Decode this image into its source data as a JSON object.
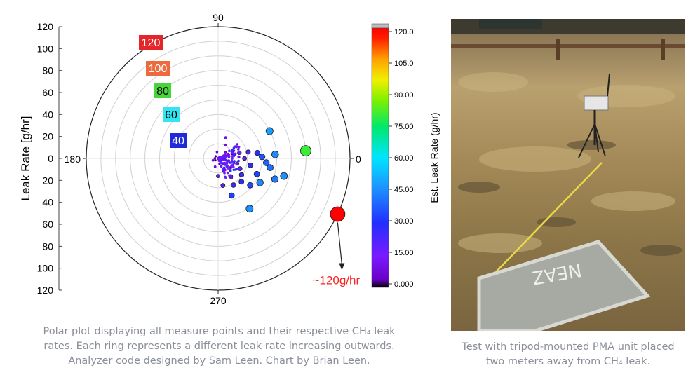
{
  "chart_data": {
    "type": "polar-scatter",
    "title": "",
    "ylabel": "Leak Rate [g/hr]",
    "r_axis_ticks_upper": [
      120,
      100,
      80,
      60,
      40,
      20,
      0
    ],
    "r_axis_ticks_lower": [
      20,
      40,
      60,
      80,
      100,
      120
    ],
    "angle_labels": [
      "90",
      "180",
      "0",
      "270"
    ],
    "rlim": [
      0,
      120
    ],
    "ring_labels": [
      {
        "text": "120",
        "color": "#e3262a"
      },
      {
        "text": "100",
        "color": "#ec6a3d"
      },
      {
        "text": "80",
        "color": "#47d63a"
      },
      {
        "text": "60",
        "color": "#33e5f0"
      },
      {
        "text": "40",
        "color": "#1f2bd6"
      }
    ],
    "colorbar": {
      "label": "Est. Leak Rate (g/hr)",
      "min": 0,
      "max": 120,
      "ticks": [
        "120.0",
        "105.0",
        "90.00",
        "75.00",
        "60.00",
        "45.00",
        "30.00",
        "15.00",
        "0.000"
      ]
    },
    "points": [
      {
        "theta": 335,
        "r": 120,
        "value": 120
      },
      {
        "theta": 5,
        "r": 80,
        "value": 80
      },
      {
        "theta": 28,
        "r": 53,
        "value": 48
      },
      {
        "theta": 302,
        "r": 54,
        "value": 46
      },
      {
        "theta": 330,
        "r": 44,
        "value": 44
      },
      {
        "theta": 345,
        "r": 62,
        "value": 46
      },
      {
        "theta": 340,
        "r": 55,
        "value": 42
      },
      {
        "theta": 4,
        "r": 52,
        "value": 45
      },
      {
        "theta": 350,
        "r": 48,
        "value": 40
      },
      {
        "theta": 355,
        "r": 44,
        "value": 38
      },
      {
        "theta": 2,
        "r": 40,
        "value": 36
      },
      {
        "theta": 320,
        "r": 38,
        "value": 34
      },
      {
        "theta": 338,
        "r": 38,
        "value": 33
      },
      {
        "theta": 8,
        "r": 36,
        "value": 30
      },
      {
        "theta": 315,
        "r": 30,
        "value": 28
      },
      {
        "theta": 300,
        "r": 28,
        "value": 25
      },
      {
        "theta": 290,
        "r": 36,
        "value": 32
      },
      {
        "theta": 325,
        "r": 26,
        "value": 24
      },
      {
        "theta": 12,
        "r": 28,
        "value": 22
      },
      {
        "theta": 348,
        "r": 30,
        "value": 26
      },
      {
        "theta": 335,
        "r": 22,
        "value": 20
      },
      {
        "theta": 305,
        "r": 20,
        "value": 18
      },
      {
        "theta": 280,
        "r": 25,
        "value": 20
      },
      {
        "theta": 15,
        "r": 20,
        "value": 16
      },
      {
        "theta": 0,
        "r": 24,
        "value": 19
      },
      {
        "theta": 345,
        "r": 18,
        "value": 14
      },
      {
        "theta": 20,
        "r": 14,
        "value": 12
      },
      {
        "theta": 320,
        "r": 14,
        "value": 12
      },
      {
        "theta": 300,
        "r": 12,
        "value": 10
      },
      {
        "theta": 270,
        "r": 16,
        "value": 13
      },
      {
        "theta": 10,
        "r": 10,
        "value": 8
      },
      {
        "theta": 330,
        "r": 9,
        "value": 7
      },
      {
        "theta": 250,
        "r": 8,
        "value": 6
      },
      {
        "theta": 40,
        "r": 9,
        "value": 6
      },
      {
        "theta": 60,
        "r": 14,
        "value": 8
      },
      {
        "theta": 200,
        "r": 5,
        "value": 4
      },
      {
        "theta": 180,
        "r": 3,
        "value": 3
      },
      {
        "theta": 100,
        "r": 6,
        "value": 4
      },
      {
        "theta": 355,
        "r": 6,
        "value": 5
      },
      {
        "theta": 310,
        "r": 6,
        "value": 5
      },
      {
        "theta": 285,
        "r": 5,
        "value": 3
      },
      {
        "theta": 25,
        "r": 5,
        "value": 3
      },
      {
        "theta": 215,
        "r": 3,
        "value": 2
      },
      {
        "theta": 140,
        "r": 3,
        "value": 2
      },
      {
        "theta": 70,
        "r": 20,
        "value": 10
      }
    ],
    "annotation": "~120g/hr"
  },
  "captions": {
    "left": "Polar plot displaying all measure points and their respective CH₄ leak rates. Each ring represents a different leak rate increasing outwards. Analyzer code designed by Sam Leen. Chart by Brian Leen.",
    "right": "Test with tripod-mounted PMA unit placed two meters away from CH₄ leak."
  },
  "photo": {
    "cover_text": "NEAZ"
  }
}
